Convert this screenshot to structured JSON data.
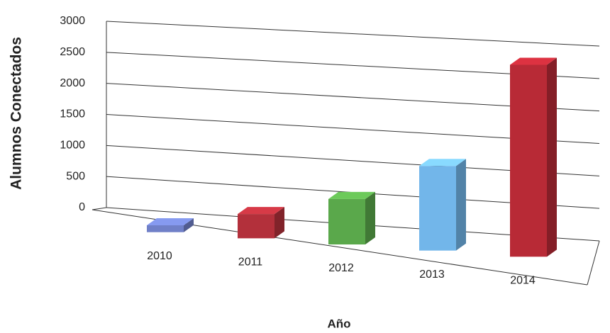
{
  "chart_data": {
    "type": "bar3d",
    "x_label": "Año",
    "y_label": "Alumnos Conectados",
    "categories": [
      "2010",
      "2011",
      "2012",
      "2013",
      "2014"
    ],
    "values": [
      100,
      350,
      650,
      1200,
      2700
    ],
    "colors": [
      "#7080c8",
      "#b3303b",
      "#5aa84b",
      "#72b6ea",
      "#b82a36"
    ],
    "ylim": [
      0,
      3000
    ],
    "yticks": [
      0,
      500,
      1000,
      1500,
      2000,
      2500,
      3000
    ],
    "grid": true
  }
}
